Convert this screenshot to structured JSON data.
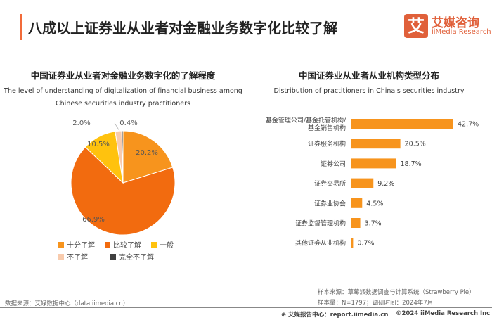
{
  "header": {
    "title": "八成以上证券业从业者对金融业务数字化比较了解",
    "logo_mark": "艾",
    "logo_cn": "艾媒咨询",
    "logo_en": "iiMedia Research",
    "accent": "#E0603A"
  },
  "chart_data": [
    {
      "type": "pie",
      "title": "中国证券业从业者对金融业务数字化的了解程度",
      "subtitle": "The level of understanding of digitalization of financial business among Chinese securities industry practitioners",
      "subtitle_line1": "The level of understanding of digitalization of financial business among",
      "subtitle_line2": "Chinese securities industry practitioners",
      "slices": [
        {
          "name": "十分了解",
          "value": 20.2,
          "label": "20.2%",
          "color": "#F7941D"
        },
        {
          "name": "比较了解",
          "value": 66.9,
          "label": "66.9%",
          "color": "#F26B0F"
        },
        {
          "name": "一般",
          "value": 10.5,
          "label": "10.5%",
          "color": "#FFC20E"
        },
        {
          "name": "不了解",
          "value": 2.0,
          "label": "2.0%",
          "color": "#F8CBAD"
        },
        {
          "name": "完全不了解",
          "value": 0.4,
          "label": "0.4%",
          "color": "#404040"
        }
      ],
      "legend_placement": "bottom"
    },
    {
      "type": "bar",
      "orientation": "horizontal",
      "title": "中国证券业从业者从业机构类型分布",
      "subtitle": "Distribution of practitioners in China's securities industry",
      "categories": [
        "基金管理公司/基金托管机构/基金销售机构",
        "证券服务机构",
        "证券公司",
        "证券交易所",
        "证券业协会",
        "证券监督管理机构",
        "其他证券从业机构"
      ],
      "category_lines": [
        [
          "基金管理公司/基金托管机构/",
          "基金销售机构"
        ],
        [
          "证券服务机构"
        ],
        [
          "证券公司"
        ],
        [
          "证券交易所"
        ],
        [
          "证券业协会"
        ],
        [
          "证券监督管理机构"
        ],
        [
          "其他证券从业机构"
        ]
      ],
      "values": [
        42.7,
        20.5,
        18.7,
        9.2,
        4.5,
        3.7,
        0.7
      ],
      "labels": [
        "42.7%",
        "20.5%",
        "18.7%",
        "9.2%",
        "4.5%",
        "3.7%",
        "0.7%"
      ],
      "color": "#F7941D"
    }
  ],
  "footer": {
    "source_left": "数据来源：艾媒数据中心（data.iimedia.cn）",
    "sample_source": "样本来源：草莓派数据调查与计算系统（Strawberry Pie）",
    "sample_size": "样本量：N=1797；调研时间：2024年7月",
    "report_center": "艾媒报告中心：report.iimedia.cn",
    "copyright": "©2024  iiMedia Research Inc"
  }
}
